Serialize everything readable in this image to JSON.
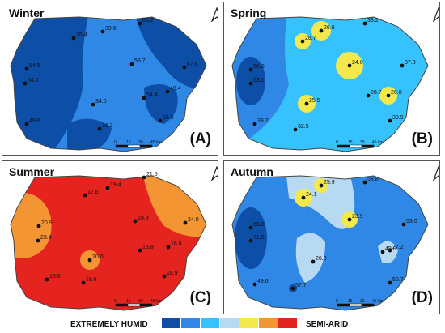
{
  "panels": [
    {
      "id": "winter",
      "title": "Winter",
      "label": "(A)",
      "stations": [
        "60.2",
        "35.4",
        "39.6",
        "54.5",
        "54.0",
        "58.7",
        "67.8",
        "49.4",
        "34.0",
        "54.4",
        "54.9",
        "49.6",
        "36.3"
      ]
    },
    {
      "id": "spring",
      "title": "Spring",
      "label": "(B)",
      "stations": [
        "33.2",
        "28.7",
        "26.6",
        "56.8",
        "63.1",
        "24.0",
        "37.8",
        "28.7",
        "26.0",
        "25.5",
        "30.9",
        "33.7",
        "32.5"
      ]
    },
    {
      "id": "summer",
      "title": "Summer",
      "label": "(C)",
      "stations": [
        "21.5",
        "17.6",
        "19.4",
        "20.9",
        "23.4",
        "18.9",
        "24.0",
        "20.0",
        "15.8",
        "16.8",
        "18.6",
        "19.6",
        "18.9"
      ]
    },
    {
      "id": "autumn",
      "title": "Autumn",
      "label": "(D)",
      "stations": [
        "53.8",
        "24.1",
        "25.9",
        "66.8",
        "71.0",
        "23.9",
        "53.0",
        "49.0",
        "27.2",
        "26.0",
        "49.6",
        "57.7",
        "50.7"
      ]
    }
  ],
  "scalebar": {
    "ticks": [
      "0",
      "15",
      "30",
      "45 km"
    ]
  },
  "legend": {
    "left_label": "EXTREMELY HUMID",
    "right_label": "SEMI-ARID",
    "colors": [
      "#0d4ea6",
      "#2f88e6",
      "#36c2ff",
      "#b7d9f2",
      "#f4e94c",
      "#f39533",
      "#e5241f"
    ]
  }
}
